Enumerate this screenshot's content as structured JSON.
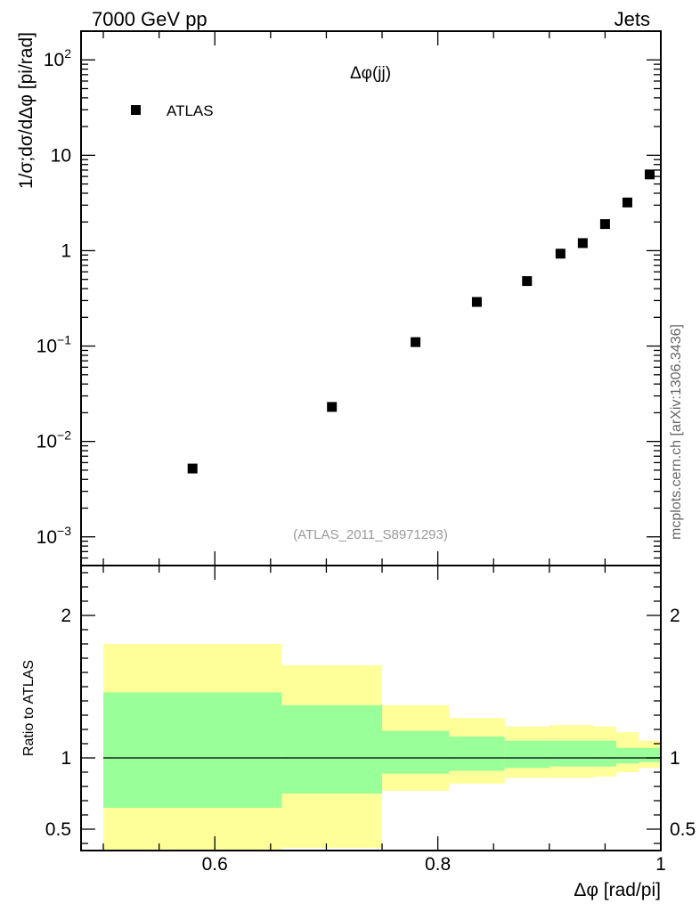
{
  "header": {
    "left": "7000 GeV pp",
    "right": "Jets"
  },
  "side_label": "mcplots.cern.ch [arXiv:1306.3436]",
  "chart_data": [
    {
      "type": "scatter",
      "panel": "main",
      "title": "Δφ(jj)",
      "ylabel": "1/σ;dσ/dΔφ [pi/rad]",
      "yscale": "log",
      "ylim": [
        0.0005,
        200
      ],
      "xlim": [
        0.48,
        1.0
      ],
      "watermark": "(ATLAS_2011_S8971293)",
      "legend": {
        "position": "top-left",
        "entries": [
          "ATLAS"
        ]
      },
      "y_tick_labels": [
        {
          "value": 100,
          "base": "10",
          "exp": "2"
        },
        {
          "value": 10,
          "base": "10",
          "exp": ""
        },
        {
          "value": 1,
          "base": "1",
          "exp": ""
        },
        {
          "value": 0.1,
          "base": "10",
          "exp": "−1"
        },
        {
          "value": 0.01,
          "base": "10",
          "exp": "−2"
        },
        {
          "value": 0.001,
          "base": "10",
          "exp": "−3"
        }
      ],
      "series": [
        {
          "name": "ATLAS",
          "marker": "square",
          "color": "#000000",
          "x": [
            0.58,
            0.705,
            0.78,
            0.835,
            0.88,
            0.91,
            0.93,
            0.95,
            0.97,
            0.99
          ],
          "y": [
            0.0052,
            0.023,
            0.11,
            0.29,
            0.48,
            0.93,
            1.2,
            1.9,
            3.2,
            6.3
          ]
        }
      ]
    },
    {
      "type": "area",
      "panel": "ratio",
      "ylabel": "Ratio to ATLAS",
      "xlabel": "Δφ [rad/pi]",
      "xlim": [
        0.48,
        1.0
      ],
      "ylim": [
        0.35,
        2.35
      ],
      "x_ticks": [
        0.6,
        0.8,
        1.0
      ],
      "x_tick_labels": [
        "0.6",
        "0.8",
        "1"
      ],
      "y_ticks": [
        0.5,
        1,
        2
      ],
      "y_tick_labels": [
        "0.5",
        "1",
        "2"
      ],
      "reference_line": 1,
      "bands": [
        {
          "name": "total uncertainty",
          "color": "#ffff99",
          "bins": [
            {
              "x0": 0.5,
              "x1": 0.66,
              "lo": 0.35,
              "hi": 1.8
            },
            {
              "x0": 0.66,
              "x1": 0.75,
              "lo": 0.37,
              "hi": 1.65
            },
            {
              "x0": 0.75,
              "x1": 0.81,
              "lo": 0.77,
              "hi": 1.37
            },
            {
              "x0": 0.81,
              "x1": 0.86,
              "lo": 0.82,
              "hi": 1.28
            },
            {
              "x0": 0.86,
              "x1": 0.9,
              "lo": 0.86,
              "hi": 1.22
            },
            {
              "x0": 0.9,
              "x1": 0.94,
              "lo": 0.86,
              "hi": 1.23
            },
            {
              "x0": 0.94,
              "x1": 0.96,
              "lo": 0.87,
              "hi": 1.22
            },
            {
              "x0": 0.96,
              "x1": 0.98,
              "lo": 0.9,
              "hi": 1.18
            },
            {
              "x0": 0.98,
              "x1": 1.0,
              "lo": 0.93,
              "hi": 1.12
            }
          ]
        },
        {
          "name": "statistical uncertainty",
          "color": "#99ff99",
          "bins": [
            {
              "x0": 0.5,
              "x1": 0.66,
              "lo": 0.65,
              "hi": 1.46
            },
            {
              "x0": 0.66,
              "x1": 0.75,
              "lo": 0.75,
              "hi": 1.37
            },
            {
              "x0": 0.75,
              "x1": 0.81,
              "lo": 0.89,
              "hi": 1.19
            },
            {
              "x0": 0.81,
              "x1": 0.86,
              "lo": 0.91,
              "hi": 1.15
            },
            {
              "x0": 0.86,
              "x1": 0.9,
              "lo": 0.93,
              "hi": 1.12
            },
            {
              "x0": 0.9,
              "x1": 0.94,
              "lo": 0.94,
              "hi": 1.12
            },
            {
              "x0": 0.94,
              "x1": 0.96,
              "lo": 0.94,
              "hi": 1.12
            },
            {
              "x0": 0.96,
              "x1": 0.98,
              "lo": 0.96,
              "hi": 1.07
            },
            {
              "x0": 0.98,
              "x1": 1.0,
              "lo": 0.97,
              "hi": 1.07
            }
          ]
        }
      ]
    }
  ]
}
